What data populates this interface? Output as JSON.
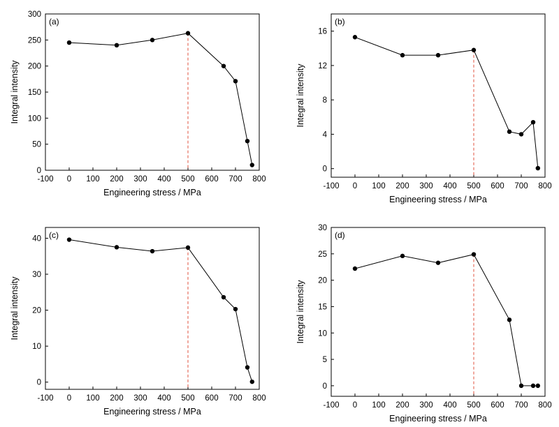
{
  "chart_data": [
    {
      "type": "line",
      "panel_label": "(a)",
      "xlabel": "Engineering stress / MPa",
      "ylabel": "Integral intensity",
      "xlim": [
        -100,
        800
      ],
      "ylim": [
        0,
        300
      ],
      "xticks": [
        -100,
        0,
        100,
        200,
        300,
        400,
        500,
        600,
        700,
        800
      ],
      "yticks": [
        0,
        50,
        100,
        150,
        200,
        250,
        300
      ],
      "x": [
        0,
        200,
        350,
        500,
        650,
        700,
        750,
        770
      ],
      "y": [
        245,
        240,
        250,
        263,
        200,
        171,
        56,
        10
      ],
      "reference_line_x": 500,
      "reference_line_color": "#e0503c"
    },
    {
      "type": "line",
      "panel_label": "(b)",
      "xlabel": "Engineering stress / MPa",
      "ylabel": "Integral intensity",
      "xlim": [
        -100,
        800
      ],
      "ylim": [
        -1,
        18
      ],
      "xticks": [
        -100,
        0,
        100,
        200,
        300,
        400,
        500,
        600,
        700,
        800
      ],
      "yticks": [
        0,
        4,
        8,
        12,
        16
      ],
      "x": [
        0,
        200,
        350,
        500,
        650,
        700,
        750,
        770
      ],
      "y": [
        15.3,
        13.2,
        13.2,
        13.8,
        4.3,
        4.0,
        5.4,
        0.05
      ],
      "reference_line_x": 500,
      "reference_line_color": "#e0503c"
    },
    {
      "type": "line",
      "panel_label": "(c)",
      "xlabel": "Engineering stress / MPa",
      "ylabel": "Integral intensity",
      "xlim": [
        -100,
        800
      ],
      "ylim": [
        -2,
        43
      ],
      "xticks": [
        -100,
        0,
        100,
        200,
        300,
        400,
        500,
        600,
        700,
        800
      ],
      "yticks": [
        0,
        10,
        20,
        30,
        40
      ],
      "x": [
        0,
        200,
        350,
        500,
        650,
        700,
        750,
        770
      ],
      "y": [
        39.6,
        37.5,
        36.4,
        37.4,
        23.6,
        20.3,
        4.1,
        0.1
      ],
      "reference_line_x": 500,
      "reference_line_color": "#e0503c"
    },
    {
      "type": "line",
      "panel_label": "(d)",
      "xlabel": "Engineering stress / MPa",
      "ylabel": "Integral intensity",
      "xlim": [
        -100,
        800
      ],
      "ylim": [
        -2,
        30
      ],
      "xticks": [
        -100,
        0,
        100,
        200,
        300,
        400,
        500,
        600,
        700,
        800
      ],
      "yticks": [
        0,
        5,
        10,
        15,
        20,
        25,
        30
      ],
      "x": [
        0,
        200,
        350,
        500,
        650,
        700,
        750,
        770
      ],
      "y": [
        22.2,
        24.6,
        23.3,
        24.9,
        12.5,
        0.0,
        0.0,
        0.0
      ],
      "reference_line_x": 500,
      "reference_line_color": "#e0503c"
    }
  ]
}
